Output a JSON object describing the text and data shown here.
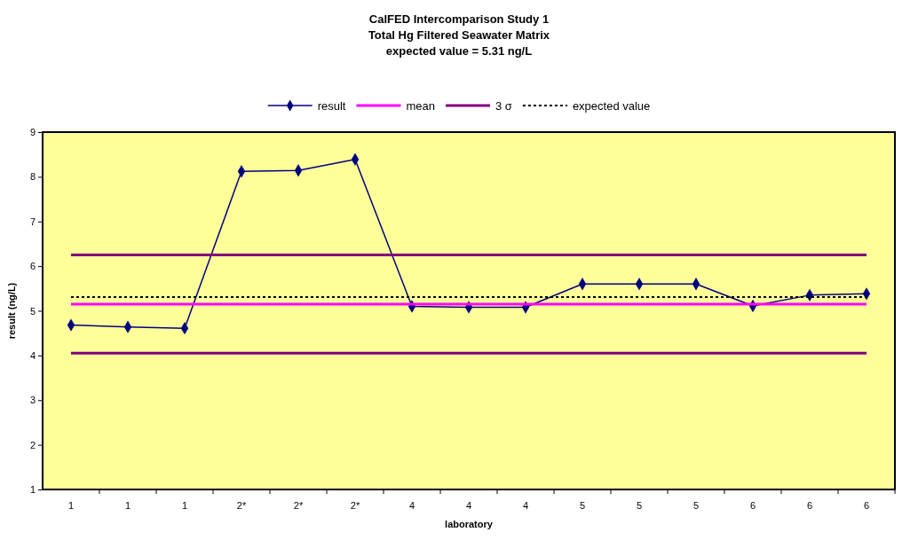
{
  "chart_data": {
    "type": "line",
    "title": "CalFED Intercomparison Study 1\nTotal Hg Filtered Seawater Matrix\nexpected value =  5.31 ng/L",
    "xlabel": "laboratory",
    "ylabel": "result (ng/L)",
    "categories": [
      "1",
      "1",
      "1",
      "2*",
      "2*",
      "2*",
      "4",
      "4",
      "4",
      "5",
      "5",
      "5",
      "6",
      "6",
      "6"
    ],
    "series": [
      {
        "name": "result",
        "color": "#000080",
        "marker": "diamond",
        "line_style": "solid",
        "values": [
          4.68,
          4.64,
          4.61,
          8.12,
          8.14,
          8.39,
          5.1,
          5.08,
          5.08,
          5.6,
          5.6,
          5.6,
          5.11,
          5.35,
          5.38
        ]
      },
      {
        "name": "mean",
        "color": "#ff00ff",
        "marker": "none",
        "line_style": "solid",
        "values": [
          5.15,
          5.15,
          5.15,
          5.15,
          5.15,
          5.15,
          5.15,
          5.15,
          5.15,
          5.15,
          5.15,
          5.15,
          5.15,
          5.15,
          5.15
        ]
      },
      {
        "name": "3 σ",
        "color": "#800080",
        "marker": "none",
        "line_style": "solid",
        "values": [
          6.25,
          6.25,
          6.25,
          6.25,
          6.25,
          6.25,
          6.25,
          6.25,
          6.25,
          6.25,
          6.25,
          6.25,
          6.25,
          6.25,
          6.25
        ]
      },
      {
        "color": "#800080",
        "marker": "none",
        "line_style": "solid",
        "values": [
          4.05,
          4.05,
          4.05,
          4.05,
          4.05,
          4.05,
          4.05,
          4.05,
          4.05,
          4.05,
          4.05,
          4.05,
          4.05,
          4.05,
          4.05
        ]
      },
      {
        "name": "expected value",
        "color": "#000000",
        "marker": "none",
        "line_style": "dotted",
        "values": [
          5.31,
          5.31,
          5.31,
          5.31,
          5.31,
          5.31,
          5.31,
          5.31,
          5.31,
          5.31,
          5.31,
          5.31,
          5.31,
          5.31,
          5.31
        ]
      }
    ],
    "ylim": [
      1,
      9
    ],
    "yticks": [
      1,
      2,
      3,
      4,
      5,
      6,
      7,
      8,
      9
    ],
    "grid": false,
    "legend": "top"
  }
}
